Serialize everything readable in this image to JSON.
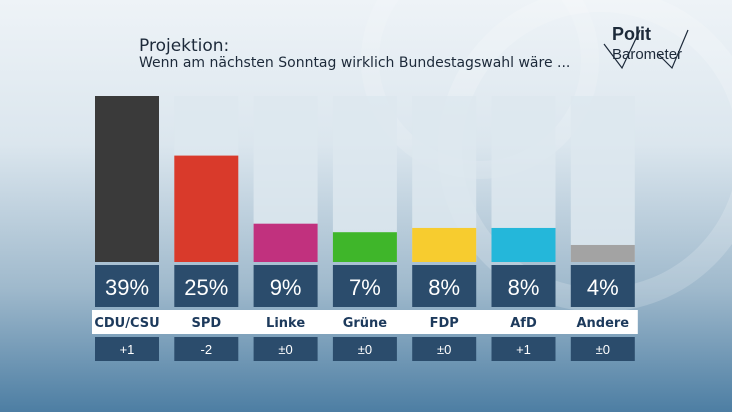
{
  "header": {
    "title": "Projektion:",
    "subtitle": "Wenn am nächsten Sonntag wirklich Bundestagswahl wäre ..."
  },
  "logo": {
    "line1": "Polit",
    "line2": "Barometer"
  },
  "colors": {
    "track": "#dde7ef",
    "value_box": "#2b4c6c",
    "label_strip": "#ffffff",
    "party_text": "#1d3a5c"
  },
  "chart_data": {
    "type": "bar",
    "title": "Projektion:",
    "subtitle": "Wenn am nächsten Sonntag wirklich Bundestagswahl wäre ...",
    "categories": [
      "CDU/CSU",
      "SPD",
      "Linke",
      "Grüne",
      "FDP",
      "AfD",
      "Andere"
    ],
    "values": [
      39,
      25,
      9,
      7,
      8,
      8,
      4
    ],
    "value_labels": [
      "39%",
      "25%",
      "9%",
      "7%",
      "8%",
      "8%",
      "4%"
    ],
    "changes": [
      "+1",
      "-2",
      "±0",
      "±0",
      "±0",
      "+1",
      "±0"
    ],
    "colors": [
      "#3a3a3a",
      "#d93a2b",
      "#c1317e",
      "#3fb62a",
      "#f7cc2f",
      "#24b7da",
      "#a3a3a3"
    ],
    "ylim": [
      0,
      39
    ],
    "grid": false,
    "legend": "none"
  }
}
